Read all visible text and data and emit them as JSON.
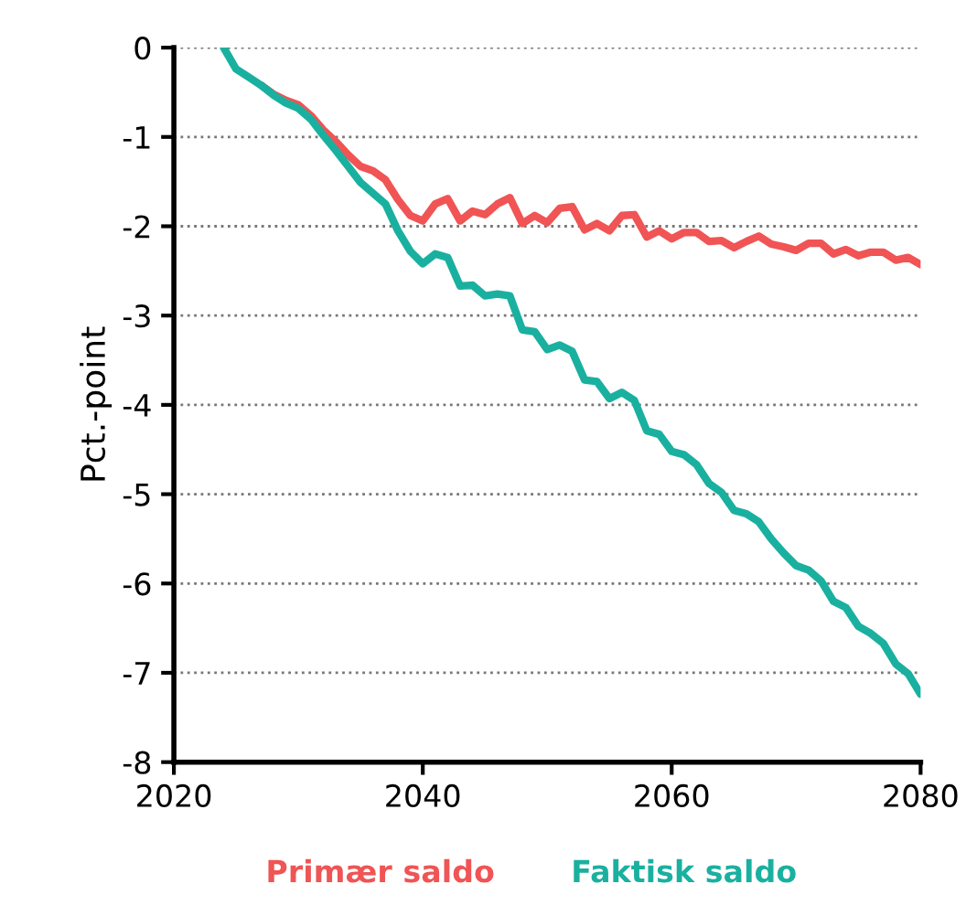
{
  "chart_data": {
    "type": "line",
    "ylabel": "Pct.-point",
    "x": [
      2024,
      2025,
      2026,
      2027,
      2028,
      2029,
      2030,
      2031,
      2032,
      2033,
      2034,
      2035,
      2036,
      2037,
      2038,
      2039,
      2040,
      2041,
      2042,
      2043,
      2044,
      2045,
      2046,
      2047,
      2048,
      2049,
      2050,
      2051,
      2052,
      2053,
      2054,
      2055,
      2056,
      2057,
      2058,
      2059,
      2060,
      2061,
      2062,
      2063,
      2064,
      2065,
      2066,
      2067,
      2068,
      2069,
      2070,
      2071,
      2072,
      2073,
      2074,
      2075,
      2076,
      2077,
      2078,
      2079,
      2080
    ],
    "series": [
      {
        "name": "Primær saldo",
        "color": "#f05454",
        "values": [
          null,
          null,
          null,
          -0.42,
          -0.52,
          -0.59,
          -0.64,
          -0.76,
          -0.92,
          -1.05,
          -1.2,
          -1.33,
          -1.38,
          -1.48,
          -1.7,
          -1.88,
          -1.94,
          -1.75,
          -1.69,
          -1.94,
          -1.83,
          -1.87,
          -1.75,
          -1.68,
          -1.97,
          -1.88,
          -1.96,
          -1.8,
          -1.78,
          -2.04,
          -1.97,
          -2.05,
          -1.88,
          -1.87,
          -2.12,
          -2.05,
          -2.14,
          -2.07,
          -2.07,
          -2.17,
          -2.16,
          -2.24,
          -2.17,
          -2.11,
          -2.2,
          -2.23,
          -2.27,
          -2.19,
          -2.19,
          -2.31,
          -2.26,
          -2.33,
          -2.29,
          -2.29,
          -2.38,
          -2.35,
          -2.43
        ]
      },
      {
        "name": "Faktisk saldo",
        "color": "#1ab0a0",
        "values": [
          0,
          -0.24,
          -0.33,
          -0.42,
          -0.53,
          -0.62,
          -0.68,
          -0.8,
          -0.98,
          -1.15,
          -1.33,
          -1.51,
          -1.63,
          -1.75,
          -2.05,
          -2.28,
          -2.42,
          -2.31,
          -2.35,
          -2.67,
          -2.66,
          -2.78,
          -2.76,
          -2.78,
          -3.16,
          -3.18,
          -3.38,
          -3.33,
          -3.4,
          -3.72,
          -3.74,
          -3.93,
          -3.86,
          -3.95,
          -4.29,
          -4.33,
          -4.52,
          -4.56,
          -4.67,
          -4.88,
          -4.98,
          -5.18,
          -5.22,
          -5.31,
          -5.5,
          -5.66,
          -5.8,
          -5.85,
          -5.97,
          -6.2,
          -6.27,
          -6.48,
          -6.56,
          -6.67,
          -6.9,
          -7.01,
          -7.24
        ]
      }
    ],
    "xlim": [
      2020,
      2080
    ],
    "xticks": [
      2020,
      2040,
      2060,
      2080
    ],
    "ylim": [
      -8,
      0
    ],
    "yticks": [
      -8,
      -7,
      -6,
      -5,
      -4,
      -3,
      -2,
      -1,
      0
    ],
    "grid": "y",
    "legend": "bottom",
    "line_style": "solid",
    "marker": "none"
  }
}
